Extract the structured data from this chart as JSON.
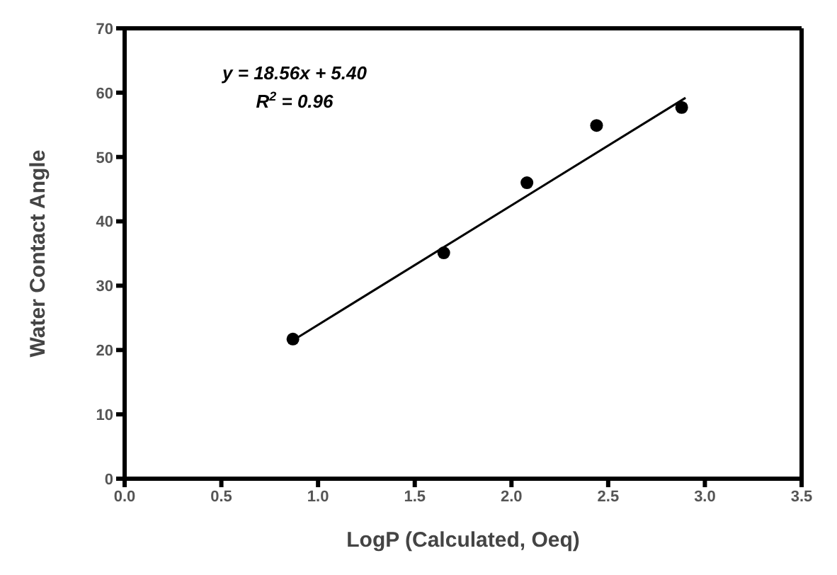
{
  "chart_data": {
    "type": "scatter",
    "xlabel": "LogP (Calculated, Oeq)",
    "ylabel": "Water Contact Angle",
    "annotations": [
      "y = 18.56x + 5.40",
      "R$^{2}$ = 0.96"
    ],
    "series": [
      {
        "color": "#000000",
        "x": [
          0.87,
          1.65,
          2.08,
          2.44,
          2.88
        ],
        "values": [
          21.7,
          35.1,
          46.0,
          54.9,
          57.7
        ],
        "marker": "circle"
      },
      {
        "type": "line",
        "color": "#000000",
        "x": [
          0.87,
          2.9
        ],
        "values": [
          21.5,
          59.2
        ],
        "line_style": "solid"
      }
    ],
    "xlim": [
      0,
      3.5
    ],
    "xticks": [
      {
        "value": 0,
        "label": "0.0"
      },
      0.5,
      {
        "value": 1,
        "label": "1.0"
      },
      1.5,
      {
        "value": 2,
        "label": "2.0"
      },
      2.5,
      {
        "value": 3,
        "label": "3.0"
      },
      3.5
    ],
    "ylim": [
      0,
      70
    ],
    "yticks": [
      0,
      10,
      20,
      30,
      40,
      50,
      60,
      70
    ],
    "grid": false
  }
}
